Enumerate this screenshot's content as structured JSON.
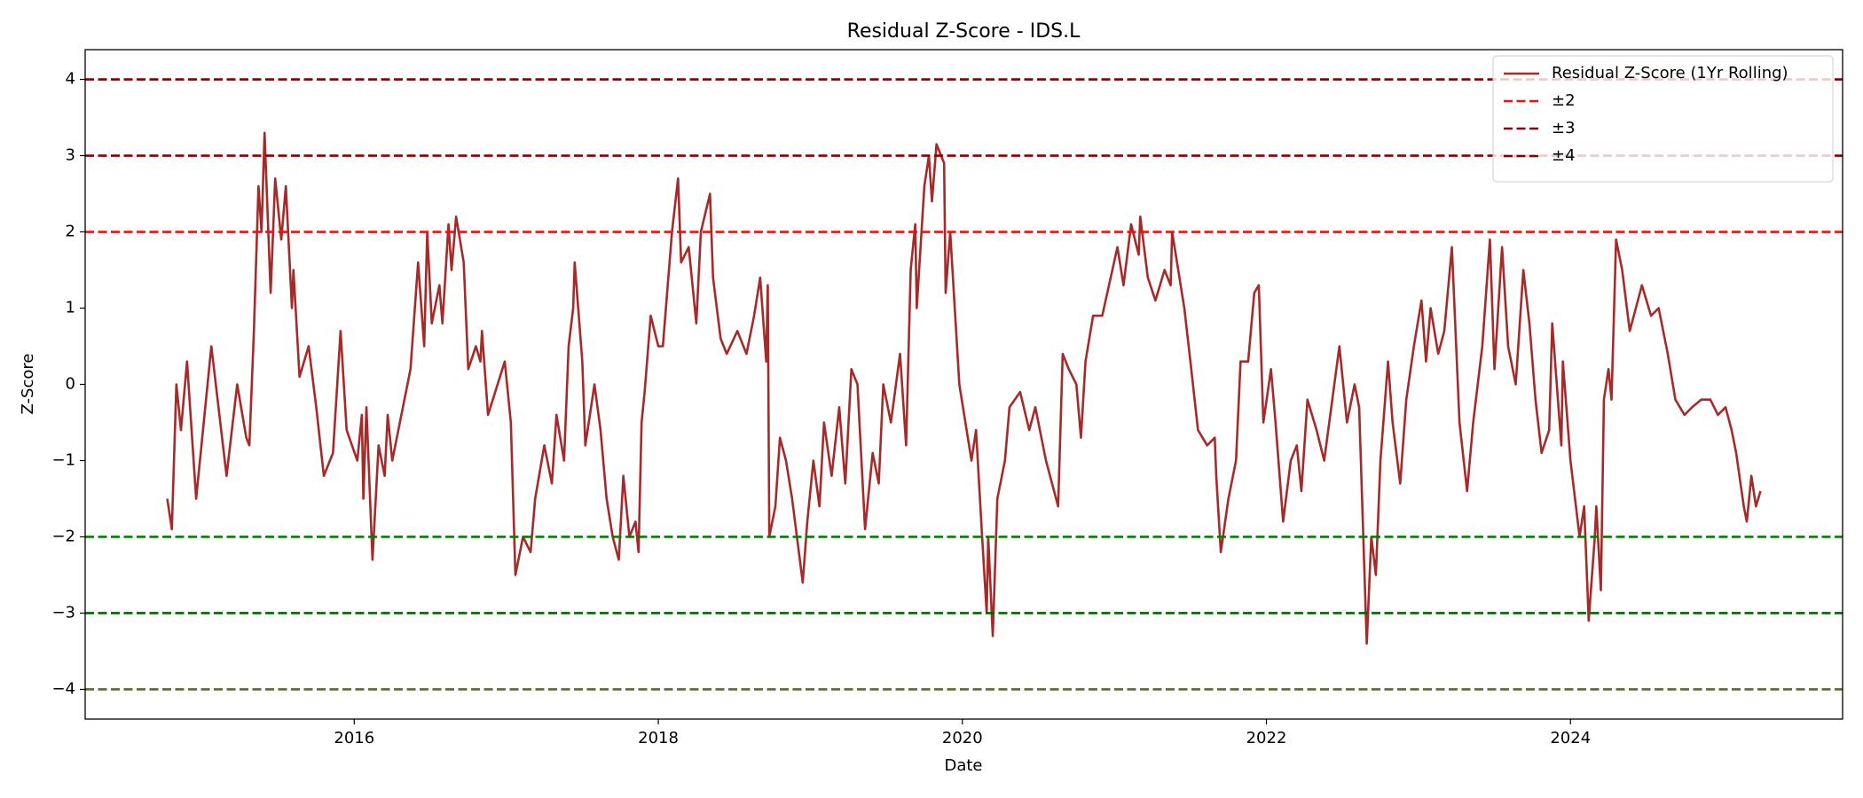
{
  "chart_data": {
    "type": "line",
    "title": "Residual Z-Score - IDS.L",
    "xlabel": "Date",
    "ylabel": "Z-Score",
    "x": [
      2014.77,
      2014.8,
      2014.83,
      2014.86,
      2014.9,
      2014.96,
      2015.02,
      2015.06,
      2015.16,
      2015.23,
      2015.29,
      2015.31,
      2015.34,
      2015.37,
      2015.39,
      2015.41,
      2015.45,
      2015.48,
      2015.52,
      2015.55,
      2015.59,
      2015.6,
      2015.64,
      2015.7,
      2015.75,
      2015.8,
      2015.86,
      2015.91,
      2015.95,
      2016.02,
      2016.05,
      2016.06,
      2016.08,
      2016.12,
      2016.16,
      2016.2,
      2016.22,
      2016.25,
      2016.33,
      2016.37,
      2016.42,
      2016.46,
      2016.48,
      2016.51,
      2016.56,
      2016.58,
      2016.62,
      2016.64,
      2016.67,
      2016.72,
      2016.75,
      2016.8,
      2016.83,
      2016.84,
      2016.88,
      2016.99,
      2017.03,
      2017.06,
      2017.11,
      2017.16,
      2017.19,
      2017.25,
      2017.3,
      2017.33,
      2017.38,
      2017.41,
      2017.44,
      2017.45,
      2017.5,
      2017.52,
      2017.58,
      2017.62,
      2017.66,
      2017.7,
      2017.74,
      2017.77,
      2017.81,
      2017.85,
      2017.87,
      2017.89,
      2017.91,
      2017.95,
      2018.0,
      2018.03,
      2018.05,
      2018.09,
      2018.13,
      2018.15,
      2018.2,
      2018.25,
      2018.28,
      2018.34,
      2018.36,
      2018.41,
      2018.45,
      2018.52,
      2018.58,
      2018.63,
      2018.67,
      2018.71,
      2018.72,
      2018.73,
      2018.77,
      2018.8,
      2018.84,
      2018.88,
      2018.95,
      2018.98,
      2019.02,
      2019.06,
      2019.09,
      2019.14,
      2019.19,
      2019.23,
      2019.27,
      2019.31,
      2019.36,
      2019.41,
      2019.45,
      2019.48,
      2019.53,
      2019.59,
      2019.63,
      2019.66,
      2019.69,
      2019.7,
      2019.75,
      2019.78,
      2019.8,
      2019.83,
      2019.88,
      2019.89,
      2019.92,
      2019.98,
      2020.06,
      2020.09,
      2020.13,
      2020.16,
      2020.17,
      2020.2,
      2020.23,
      2020.28,
      2020.31,
      2020.38,
      2020.44,
      2020.48,
      2020.55,
      2020.63,
      2020.66,
      2020.7,
      2020.75,
      2020.78,
      2020.81,
      2020.86,
      2020.92,
      2021.02,
      2021.06,
      2021.11,
      2021.16,
      2021.17,
      2021.22,
      2021.27,
      2021.33,
      2021.37,
      2021.38,
      2021.42,
      2021.46,
      2021.5,
      2021.55,
      2021.61,
      2021.66,
      2021.67,
      2021.7,
      2021.75,
      2021.8,
      2021.83,
      2021.88,
      2021.92,
      2021.95,
      2021.98,
      2022.03,
      2022.06,
      2022.11,
      2022.16,
      2022.2,
      2022.23,
      2022.27,
      2022.33,
      2022.38,
      2022.48,
      2022.53,
      2022.58,
      2022.61,
      2022.66,
      2022.69,
      2022.72,
      2022.75,
      2022.8,
      2022.83,
      2022.88,
      2022.92,
      2022.97,
      2023.02,
      2023.05,
      2023.08,
      2023.13,
      2023.17,
      2023.22,
      2023.27,
      2023.32,
      2023.36,
      2023.42,
      2023.47,
      2023.5,
      2023.55,
      2023.59,
      2023.64,
      2023.69,
      2023.73,
      2023.77,
      2023.81,
      2023.86,
      2023.88,
      2023.91,
      2023.94,
      2023.95,
      2024.0,
      2024.06,
      2024.09,
      2024.12,
      2024.16,
      2024.17,
      2024.2,
      2024.22,
      2024.25,
      2024.27,
      2024.3,
      2024.34,
      2024.39,
      2024.47,
      2024.53,
      2024.58,
      2024.64,
      2024.69,
      2024.75,
      2024.8,
      2024.86,
      2024.92,
      2024.97,
      2025.02,
      2025.06,
      2025.09,
      2025.14,
      2025.16,
      2025.19,
      2025.22,
      2025.25
    ],
    "series": [
      {
        "name": "Residual Z-Score (1Yr Rolling)",
        "color": "#a52a2a",
        "values": [
          -1.5,
          -1.9,
          0.0,
          -0.6,
          0.3,
          -1.5,
          -0.3,
          0.5,
          -1.2,
          0.0,
          -0.7,
          -0.8,
          0.7,
          2.6,
          2.0,
          3.3,
          1.2,
          2.7,
          1.9,
          2.6,
          1.0,
          1.5,
          0.1,
          0.5,
          -0.3,
          -1.2,
          -0.9,
          0.7,
          -0.6,
          -1.0,
          -0.4,
          -1.5,
          -0.3,
          -2.3,
          -0.8,
          -1.2,
          -0.4,
          -1.0,
          -0.2,
          0.2,
          1.6,
          0.5,
          2.0,
          0.8,
          1.3,
          0.8,
          2.1,
          1.5,
          2.2,
          1.6,
          0.2,
          0.5,
          0.3,
          0.7,
          -0.4,
          0.3,
          -0.5,
          -2.5,
          -2.0,
          -2.2,
          -1.5,
          -0.8,
          -1.3,
          -0.4,
          -1.0,
          0.5,
          1.0,
          1.6,
          0.3,
          -0.8,
          0.0,
          -0.6,
          -1.5,
          -2.0,
          -2.3,
          -1.2,
          -2.0,
          -1.8,
          -2.2,
          -0.5,
          -0.1,
          0.9,
          0.5,
          0.5,
          1.0,
          2.0,
          2.7,
          1.6,
          1.8,
          0.8,
          2.0,
          2.5,
          1.4,
          0.6,
          0.4,
          0.7,
          0.4,
          0.9,
          1.4,
          0.3,
          1.3,
          -2.0,
          -1.6,
          -0.7,
          -1.0,
          -1.5,
          -2.6,
          -1.8,
          -1.0,
          -1.6,
          -0.5,
          -1.2,
          -0.3,
          -1.3,
          0.2,
          0.0,
          -1.9,
          -0.9,
          -1.3,
          0.0,
          -0.5,
          0.4,
          -0.8,
          1.5,
          2.1,
          1.0,
          2.6,
          3.0,
          2.4,
          3.15,
          2.9,
          1.2,
          2.0,
          0.0,
          -1.0,
          -0.6,
          -2.0,
          -3.0,
          -2.0,
          -3.3,
          -1.5,
          -1.0,
          -0.3,
          -0.1,
          -0.6,
          -0.3,
          -1.0,
          -1.6,
          0.4,
          0.2,
          0.0,
          -0.7,
          0.3,
          0.9,
          0.9,
          1.8,
          1.3,
          2.1,
          1.7,
          2.2,
          1.4,
          1.1,
          1.5,
          1.3,
          2.0,
          1.5,
          1.0,
          0.3,
          -0.6,
          -0.8,
          -0.7,
          -1.2,
          -2.2,
          -1.5,
          -1.0,
          0.3,
          0.3,
          1.2,
          1.3,
          -0.5,
          0.2,
          -0.5,
          -1.8,
          -1.0,
          -0.8,
          -1.4,
          -0.2,
          -0.6,
          -1.0,
          0.5,
          -0.5,
          0.0,
          -0.3,
          -3.4,
          -2.0,
          -2.5,
          -1.0,
          0.3,
          -0.5,
          -1.3,
          -0.2,
          0.5,
          1.1,
          0.3,
          1.0,
          0.4,
          0.7,
          1.8,
          -0.5,
          -1.4,
          -0.5,
          0.5,
          1.9,
          0.2,
          1.8,
          0.5,
          0.0,
          1.5,
          0.8,
          -0.2,
          -0.9,
          -0.6,
          0.8,
          0.0,
          -0.8,
          0.3,
          -1.0,
          -2.0,
          -1.6,
          -3.1,
          -2.0,
          -1.6,
          -2.7,
          -0.2,
          0.2,
          -0.2,
          1.9,
          1.5,
          0.7,
          1.3,
          0.9,
          1.0,
          0.4,
          -0.2,
          -0.4,
          -0.3,
          -0.2,
          -0.2,
          -0.4,
          -0.3,
          -0.6,
          -0.9,
          -1.6,
          -1.8,
          -1.2,
          -1.6,
          -1.4
        ]
      }
    ],
    "reference_lines": [
      {
        "name": "±2",
        "values": [
          2,
          -2
        ],
        "colors": [
          "#ee1111",
          "#008000"
        ]
      },
      {
        "name": "±3",
        "values": [
          3,
          -3
        ],
        "colors": [
          "#8b0000",
          "#006400"
        ]
      },
      {
        "name": "±4",
        "values": [
          4,
          -4
        ],
        "colors": [
          "#800000",
          "#556b2f"
        ]
      }
    ],
    "xlim": [
      2014.23,
      2025.79
    ],
    "xticks": [
      2016,
      2018,
      2020,
      2022,
      2024
    ],
    "ylim": [
      -4.39,
      4.39
    ],
    "yticks": [
      {
        "value": -4,
        "label": "−4"
      },
      {
        "value": -3,
        "label": "−3"
      },
      {
        "value": -2,
        "label": "−2"
      },
      {
        "value": -1,
        "label": "−1"
      },
      0,
      1,
      2,
      3,
      4
    ],
    "grid": false,
    "legend": "upper right"
  }
}
